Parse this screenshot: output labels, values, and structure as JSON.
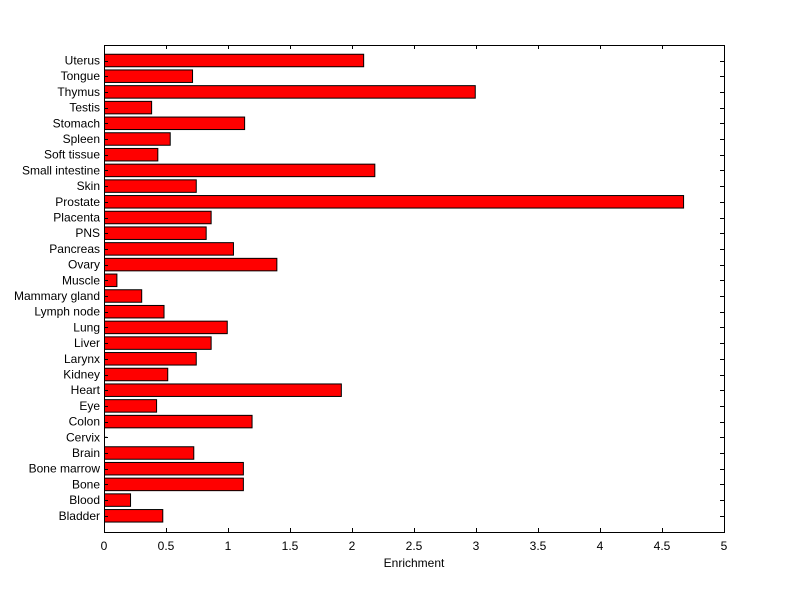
{
  "chart_data": {
    "type": "bar",
    "orientation": "horizontal",
    "title": "",
    "xlabel": "Enrichment",
    "ylabel": "",
    "xlim": [
      0,
      5
    ],
    "xticks": [
      "0",
      "0.5",
      "1",
      "1.5",
      "2",
      "2.5",
      "3",
      "3.5",
      "4",
      "4.5",
      "5"
    ],
    "grid": false,
    "bar_color": "#ff0000",
    "categories": [
      "Bladder",
      "Blood",
      "Bone",
      "Bone marrow",
      "Brain",
      "Cervix",
      "Colon",
      "Eye",
      "Heart",
      "Kidney",
      "Larynx",
      "Liver",
      "Lung",
      "Lymph node",
      "Mammary gland",
      "Muscle",
      "Ovary",
      "Pancreas",
      "PNS",
      "Placenta",
      "Prostate",
      "Skin",
      "Small intestine",
      "Soft tissue",
      "Spleen",
      "Stomach",
      "Testis",
      "Thymus",
      "Tongue",
      "Uterus"
    ],
    "values": [
      0.47,
      0.21,
      1.12,
      1.12,
      0.72,
      0.0,
      1.19,
      0.42,
      1.91,
      0.51,
      0.74,
      0.86,
      0.99,
      0.48,
      0.3,
      0.1,
      1.39,
      1.04,
      0.82,
      0.86,
      4.67,
      0.74,
      2.18,
      0.43,
      0.53,
      1.13,
      0.38,
      2.99,
      0.71,
      2.09
    ]
  }
}
